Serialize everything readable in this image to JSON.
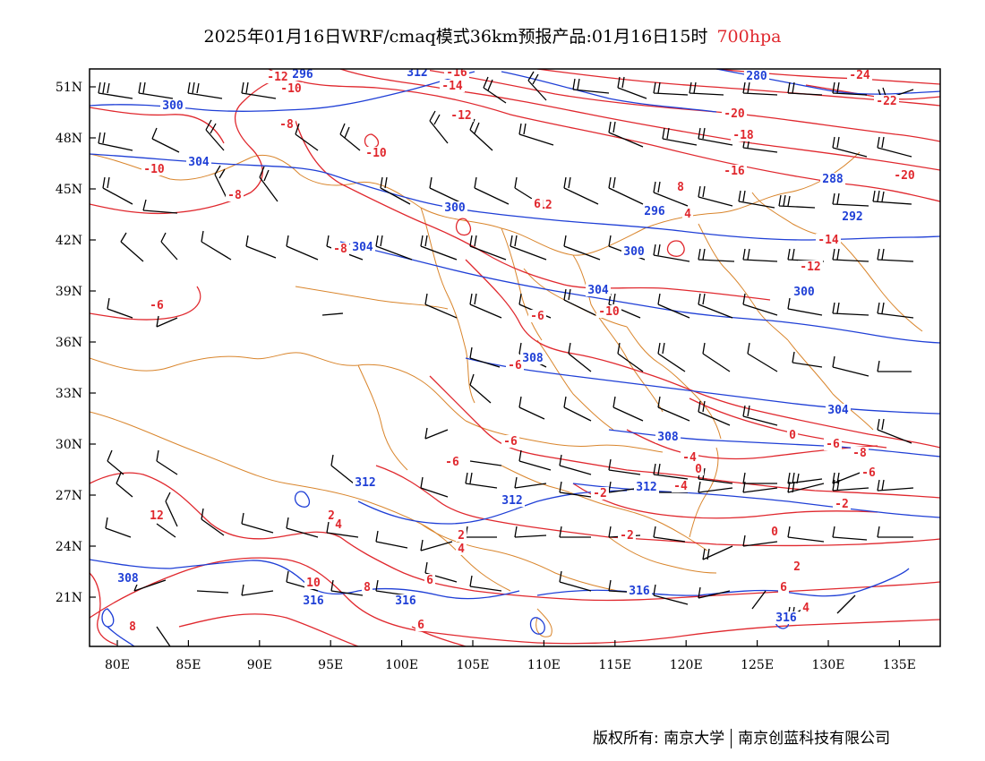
{
  "title": {
    "main": "2025年01月16日WRF/cmaq模式36km预报产品:01月16日15时",
    "level": "700hpa",
    "level_color": "#e0282e"
  },
  "axes": {
    "lat_labels": [
      "51N",
      "48N",
      "45N",
      "42N",
      "39N",
      "36N",
      "33N",
      "30N",
      "27N",
      "24N",
      "21N"
    ],
    "lon_labels": [
      "80E",
      "85E",
      "90E",
      "95E",
      "100E",
      "105E",
      "110E",
      "115E",
      "120E",
      "125E",
      "130E",
      "135E"
    ]
  },
  "colors": {
    "temperature_isotherm": "#e0282e",
    "geopotential_height": "#1f3fd6",
    "boundaries": "#d9852c",
    "wind_barb": "#000000"
  },
  "contour_labels": {
    "temperature": [
      "-12",
      "-10",
      "-16",
      "-14",
      "-8",
      "-12",
      "-10",
      "-12",
      "-20",
      "-24",
      "-22",
      "-18",
      "-16",
      "-20",
      "-10",
      "-8",
      "-8",
      "-6",
      "-10",
      "-14",
      "-12",
      "-6",
      "-6",
      "-6",
      "-6",
      "-2",
      "0",
      "-4",
      "-6",
      "-8",
      "-6",
      "-4",
      "-2",
      "-2",
      "0",
      "2",
      "2",
      "4",
      "6",
      "4",
      "6",
      "2",
      "4",
      "6",
      "8",
      "10",
      "6",
      "8",
      "4",
      "0",
      "12",
      "8"
    ],
    "geopotential": [
      "296",
      "300",
      "304",
      "300",
      "304",
      "288",
      "296",
      "292",
      "300",
      "300",
      "304",
      "308",
      "304",
      "308",
      "312",
      "312",
      "312",
      "316",
      "316",
      "316",
      "308",
      "280",
      "312",
      "316"
    ]
  },
  "copyright": {
    "left": "版权所有: 南京大学",
    "right": "南京创蓝科技有限公司"
  }
}
